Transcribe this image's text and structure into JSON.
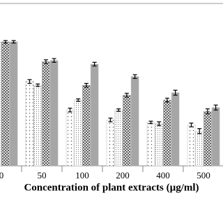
{
  "chart_data": {
    "type": "bar",
    "xlabel": "Concentration of plant extracts (µg/ml)",
    "categories": [
      "0",
      "50",
      "100",
      "200",
      "400",
      "500"
    ],
    "ylim": [
      0,
      100
    ],
    "series": [
      {
        "color": "#ffffff",
        "values": [
          100,
          68,
          45,
          37,
          35,
          33
        ],
        "errors": [
          1,
          1.5,
          1.5,
          1.5,
          1,
          1.5
        ]
      },
      {
        "color": "#ffffff",
        "values": [
          100,
          65,
          53,
          45,
          34,
          28
        ],
        "errors": [
          1,
          1,
          1,
          1,
          1.5,
          2
        ]
      },
      {
        "color": "#ffffff",
        "values": [
          100,
          84,
          65,
          57,
          53,
          44
        ],
        "errors": [
          1,
          1.5,
          1.5,
          1.5,
          1.5,
          2
        ]
      },
      {
        "color": "#a6a6a6",
        "values": [
          100,
          85,
          82,
          72,
          59,
          47
        ],
        "errors": [
          1,
          1.5,
          1.5,
          1.5,
          2,
          2
        ]
      }
    ]
  }
}
